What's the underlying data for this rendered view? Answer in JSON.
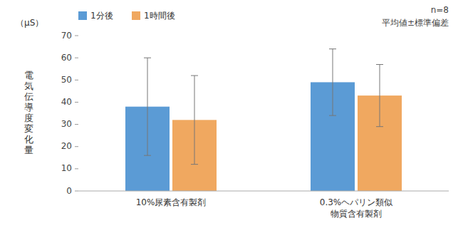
{
  "chart_data": {
    "type": "bar",
    "categories": [
      "10%尿素含有製剤",
      "0.3%ヘパリン類似\n物質含有製剤"
    ],
    "series": [
      {
        "name": "1分後",
        "color": "#5b9bd5",
        "values": [
          38,
          49
        ],
        "errors": [
          22,
          15
        ]
      },
      {
        "name": "1時間後",
        "color": "#f0a860",
        "values": [
          32,
          43
        ],
        "errors": [
          20,
          14
        ]
      }
    ],
    "ylabel": "電\n気\n伝\n導\n度\n変\n化\n量",
    "annotations": [
      "（μS）",
      "n=8",
      "平均値±標準偏差"
    ],
    "ylim": [
      0,
      70
    ],
    "yticks": [
      0,
      10,
      20,
      30,
      40,
      50,
      60,
      70
    ],
    "grid": false,
    "legend": "upper left"
  }
}
